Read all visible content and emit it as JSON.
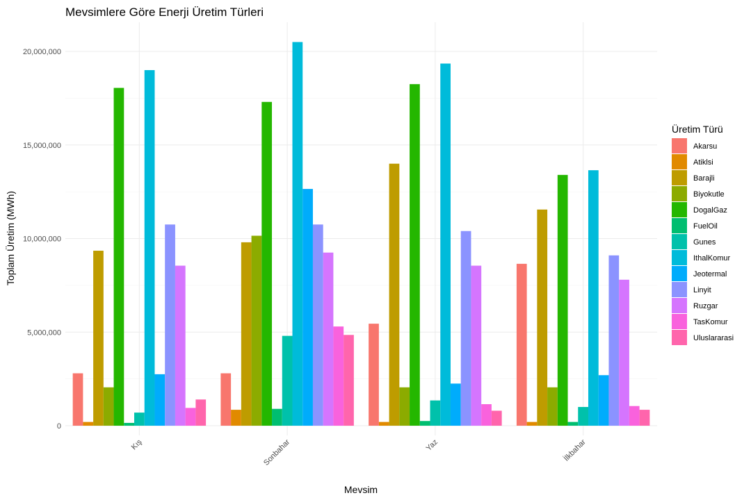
{
  "chart_data": {
    "type": "bar",
    "title": "Mevsimlere Göre Enerji Üretim Türleri",
    "xlabel": "Mevsim",
    "ylabel": "Toplam Üretim (MWh)",
    "legend_title": "Üretim Türü",
    "legend_position": "right",
    "grid": true,
    "ylim": [
      0,
      21000000
    ],
    "y_ticks": [
      0,
      5000000,
      10000000,
      15000000,
      20000000
    ],
    "y_tick_labels": [
      "0",
      "5,000,000",
      "10,000,000",
      "15,000,000",
      "20,000,000"
    ],
    "categories": [
      "Kış",
      "Sonbahar",
      "Yaz",
      "İlkbahar"
    ],
    "series": [
      {
        "name": "Akarsu",
        "color": "#F8766D",
        "values": [
          2800000,
          2800000,
          5450000,
          8650000
        ]
      },
      {
        "name": "Atiklsi",
        "color": "#E18A00",
        "values": [
          200000,
          850000,
          200000,
          200000
        ]
      },
      {
        "name": "Barajli",
        "color": "#BE9C00",
        "values": [
          9350000,
          9800000,
          14000000,
          11550000
        ]
      },
      {
        "name": "Biyokutle",
        "color": "#8CAB00",
        "values": [
          2050000,
          10150000,
          2050000,
          2050000
        ]
      },
      {
        "name": "DogalGaz",
        "color": "#24B700",
        "values": [
          18050000,
          17300000,
          18250000,
          13400000
        ]
      },
      {
        "name": "FuelOil",
        "color": "#00BE70",
        "values": [
          150000,
          900000,
          250000,
          200000
        ]
      },
      {
        "name": "Gunes",
        "color": "#00C1AB",
        "values": [
          700000,
          4800000,
          1350000,
          1000000
        ]
      },
      {
        "name": "IthalKomur",
        "color": "#00BBDA",
        "values": [
          19000000,
          20500000,
          19350000,
          13650000
        ]
      },
      {
        "name": "Jeotermal",
        "color": "#00ACFC",
        "values": [
          2750000,
          12650000,
          2250000,
          2700000
        ]
      },
      {
        "name": "Linyit",
        "color": "#8B93FF",
        "values": [
          10750000,
          10750000,
          10400000,
          9100000
        ]
      },
      {
        "name": "Ruzgar",
        "color": "#D575FE",
        "values": [
          8550000,
          9250000,
          8550000,
          7800000
        ]
      },
      {
        "name": "TasKomur",
        "color": "#F962DD",
        "values": [
          950000,
          5300000,
          1150000,
          1050000
        ]
      },
      {
        "name": "Uluslararasi",
        "color": "#FF65AC",
        "values": [
          1400000,
          4850000,
          800000,
          850000
        ]
      }
    ]
  }
}
